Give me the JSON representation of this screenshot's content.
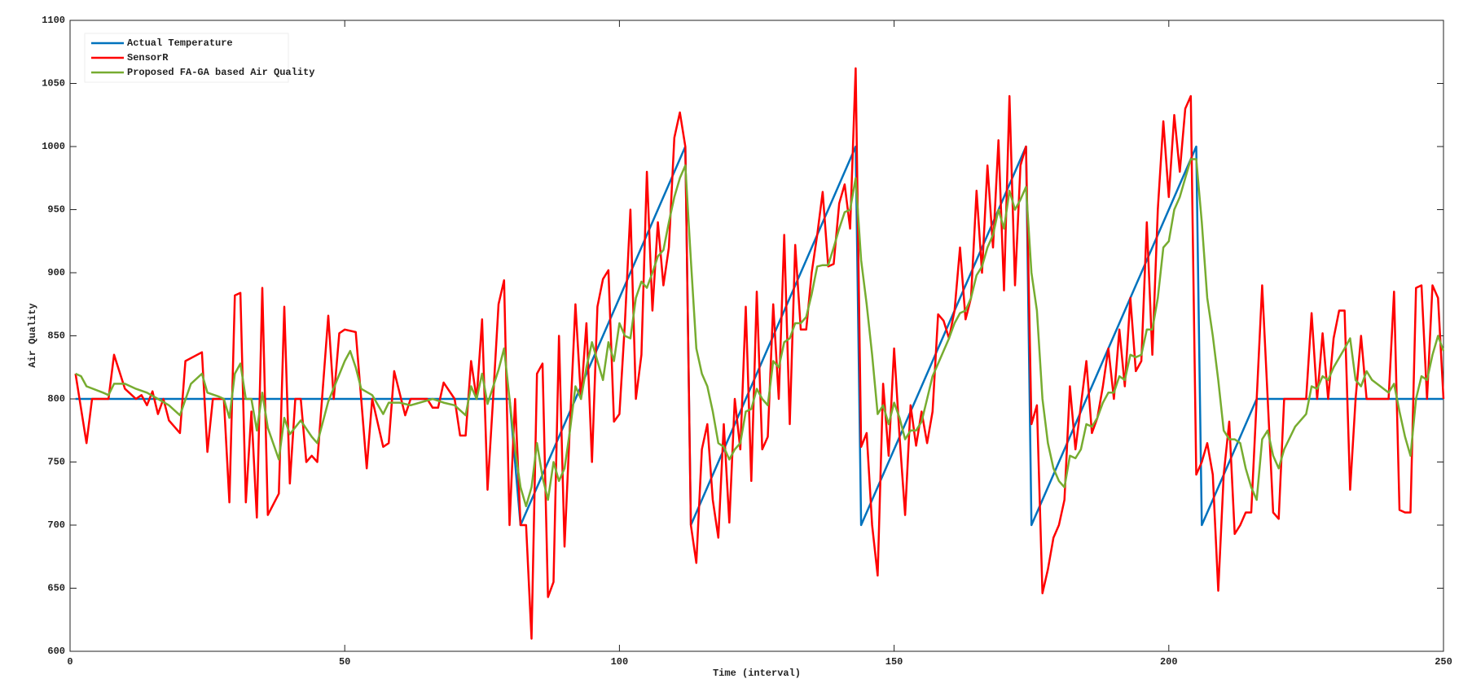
{
  "chart_data": {
    "type": "line",
    "xlabel": "Time (interval)",
    "ylabel": "Air Quality",
    "xlim": [
      0,
      250
    ],
    "xticks": [
      0,
      50,
      100,
      150,
      200,
      250
    ],
    "ylim": [
      600,
      1100
    ],
    "yticks": [
      600,
      650,
      700,
      750,
      800,
      850,
      900,
      950,
      1000,
      1050,
      1100
    ],
    "legend": "upper left",
    "grid": false,
    "series": [
      {
        "name": "Actual Temperature",
        "color": "#0072bd",
        "x": [
          1,
          80,
          82,
          112,
          113,
          143,
          144,
          174,
          175,
          205,
          206,
          216,
          250
        ],
        "values": [
          800,
          800,
          700,
          1000,
          700,
          1000,
          700,
          1000,
          700,
          1000,
          700,
          800,
          800
        ]
      },
      {
        "name": "SensorR",
        "color": "#ff0000",
        "x": [
          1,
          3,
          4,
          7,
          8,
          10,
          12,
          13,
          14,
          15,
          16,
          17,
          18,
          20,
          21,
          24,
          25,
          26,
          28,
          29,
          30,
          31,
          32,
          33,
          34,
          35,
          36,
          38,
          39,
          40,
          41,
          42,
          43,
          44,
          45,
          47,
          48,
          49,
          50,
          52,
          53,
          54,
          55,
          57,
          58,
          59,
          61,
          62,
          65,
          66,
          67,
          68,
          70,
          71,
          72,
          73,
          74,
          75,
          76,
          77,
          78,
          79,
          80,
          81,
          82,
          83,
          84,
          85,
          86,
          87,
          88,
          89,
          90,
          91,
          92,
          93,
          94,
          95,
          96,
          97,
          98,
          99,
          100,
          101,
          102,
          103,
          104,
          105,
          106,
          107,
          108,
          109,
          110,
          111,
          112,
          113,
          114,
          115,
          116,
          117,
          118,
          119,
          120,
          121,
          122,
          123,
          124,
          125,
          126,
          127,
          128,
          129,
          130,
          131,
          132,
          133,
          134,
          135,
          136,
          137,
          138,
          139,
          140,
          141,
          142,
          143,
          144,
          145,
          146,
          147,
          148,
          149,
          150,
          151,
          152,
          153,
          154,
          155,
          156,
          157,
          158,
          159,
          160,
          161,
          162,
          163,
          164,
          165,
          166,
          167,
          168,
          169,
          170,
          171,
          172,
          173,
          174,
          175,
          176,
          177,
          178,
          179,
          180,
          181,
          182,
          183,
          184,
          185,
          186,
          187,
          188,
          189,
          190,
          191,
          192,
          193,
          194,
          195,
          196,
          197,
          198,
          199,
          200,
          201,
          202,
          203,
          204,
          205,
          206,
          207,
          208,
          209,
          210,
          211,
          212,
          213,
          214,
          215,
          216,
          217,
          218,
          219,
          220,
          221,
          225,
          226,
          227,
          228,
          229,
          230,
          231,
          232,
          233,
          234,
          235,
          236,
          240,
          241,
          242,
          243,
          244,
          245,
          246,
          247,
          248,
          249,
          250
        ],
        "values": [
          820,
          765,
          800,
          800,
          835,
          808,
          800,
          803,
          795,
          806,
          788,
          800,
          783,
          773,
          830,
          837,
          758,
          800,
          800,
          718,
          882,
          884,
          718,
          790,
          706,
          888,
          708,
          725,
          873,
          733,
          800,
          800,
          750,
          755,
          750,
          866,
          800,
          852,
          855,
          853,
          800,
          745,
          800,
          762,
          765,
          822,
          787,
          800,
          800,
          793,
          793,
          813,
          800,
          771,
          771,
          830,
          800,
          863,
          728,
          800,
          875,
          894,
          700,
          800,
          700,
          700,
          610,
          820,
          828,
          643,
          655,
          850,
          683,
          780,
          875,
          800,
          860,
          750,
          873,
          895,
          902,
          782,
          788,
          860,
          950,
          800,
          835,
          980,
          870,
          940,
          890,
          920,
          1007,
          1027,
          1000,
          700,
          670,
          760,
          780,
          720,
          690,
          780,
          702,
          800,
          760,
          873,
          735,
          885,
          760,
          770,
          875,
          800,
          930,
          780,
          922,
          855,
          855,
          900,
          930,
          964,
          905,
          907,
          955,
          970,
          935,
          1062,
          762,
          773,
          700,
          660,
          812,
          755,
          840,
          770,
          708,
          795,
          763,
          790,
          765,
          790,
          867,
          862,
          848,
          870,
          920,
          863,
          880,
          965,
          900,
          985,
          920,
          1005,
          886,
          1040,
          890,
          985,
          1000,
          780,
          795,
          646,
          665,
          690,
          700,
          720,
          810,
          760,
          795,
          830,
          773,
          785,
          810,
          840,
          800,
          855,
          810,
          880,
          822,
          830,
          940,
          835,
          950,
          1020,
          960,
          1025,
          980,
          1030,
          1040,
          740,
          750,
          765,
          740,
          648,
          740,
          782,
          693,
          700,
          710,
          710,
          800,
          890,
          800,
          710,
          705,
          800,
          800,
          868,
          800,
          852,
          800,
          848,
          870,
          870,
          728,
          800,
          850,
          800,
          800,
          885,
          712,
          710,
          710,
          888,
          890,
          800,
          890,
          880,
          800
        ]
      },
      {
        "name": "Proposed FA-GA based Air Quality",
        "color": "#77ac30",
        "x": [
          1,
          2,
          3,
          6,
          7,
          8,
          10,
          12,
          14,
          16,
          18,
          20,
          22,
          24,
          25,
          27,
          28,
          29,
          30,
          31,
          32,
          33,
          34,
          35,
          36,
          38,
          39,
          40,
          42,
          44,
          45,
          47,
          50,
          51,
          52,
          53,
          55,
          57,
          58,
          60,
          62,
          66,
          68,
          70,
          72,
          73,
          74,
          75,
          76,
          78,
          79,
          80,
          81,
          82,
          83,
          84,
          85,
          86,
          87,
          88,
          89,
          90,
          91,
          92,
          93,
          94,
          95,
          96,
          97,
          98,
          99,
          100,
          101,
          102,
          103,
          104,
          105,
          106,
          107,
          108,
          109,
          110,
          111,
          112,
          113,
          114,
          115,
          116,
          117,
          118,
          119,
          120,
          121,
          122,
          123,
          124,
          125,
          126,
          127,
          128,
          129,
          130,
          131,
          132,
          133,
          134,
          135,
          136,
          137,
          138,
          139,
          140,
          141,
          142,
          143,
          144,
          145,
          146,
          147,
          148,
          149,
          150,
          151,
          152,
          153,
          154,
          155,
          156,
          157,
          158,
          159,
          160,
          161,
          162,
          163,
          164,
          165,
          166,
          167,
          168,
          169,
          170,
          171,
          172,
          173,
          174,
          175,
          176,
          177,
          178,
          179,
          180,
          181,
          182,
          183,
          184,
          185,
          186,
          187,
          188,
          189,
          190,
          191,
          192,
          193,
          194,
          195,
          196,
          197,
          198,
          199,
          200,
          201,
          202,
          203,
          204,
          205,
          206,
          207,
          208,
          209,
          210,
          211,
          212,
          213,
          214,
          215,
          216,
          217,
          218,
          219,
          220,
          221,
          223,
          225,
          226,
          227,
          228,
          229,
          230,
          232,
          233,
          234,
          235,
          236,
          237,
          240,
          241,
          242,
          243,
          244,
          245,
          246,
          247,
          248,
          249,
          250
        ],
        "values": [
          820,
          818,
          810,
          805,
          803,
          812,
          812,
          808,
          805,
          800,
          795,
          787,
          812,
          820,
          805,
          802,
          800,
          785,
          820,
          828,
          800,
          800,
          775,
          805,
          777,
          752,
          785,
          772,
          783,
          770,
          765,
          798,
          830,
          838,
          825,
          808,
          803,
          788,
          797,
          797,
          795,
          800,
          797,
          795,
          787,
          810,
          800,
          820,
          796,
          823,
          840,
          800,
          760,
          730,
          715,
          730,
          765,
          738,
          720,
          750,
          735,
          745,
          775,
          810,
          800,
          825,
          845,
          830,
          815,
          845,
          830,
          860,
          850,
          848,
          880,
          893,
          888,
          900,
          913,
          918,
          940,
          960,
          975,
          985,
          910,
          840,
          820,
          810,
          790,
          765,
          762,
          752,
          760,
          765,
          790,
          792,
          808,
          800,
          795,
          830,
          825,
          845,
          848,
          860,
          860,
          865,
          883,
          905,
          906,
          906,
          920,
          935,
          948,
          950,
          975,
          910,
          875,
          835,
          788,
          795,
          780,
          797,
          785,
          768,
          775,
          775,
          782,
          800,
          818,
          828,
          838,
          848,
          860,
          868,
          870,
          880,
          898,
          905,
          920,
          930,
          950,
          935,
          965,
          950,
          958,
          968,
          900,
          870,
          800,
          765,
          745,
          735,
          730,
          755,
          753,
          760,
          780,
          778,
          785,
          797,
          805,
          805,
          818,
          815,
          835,
          833,
          835,
          855,
          855,
          880,
          920,
          925,
          950,
          960,
          975,
          990,
          990,
          940,
          880,
          850,
          815,
          775,
          768,
          768,
          765,
          745,
          730,
          720,
          768,
          775,
          755,
          745,
          760,
          778,
          788,
          810,
          808,
          818,
          815,
          825,
          840,
          848,
          815,
          810,
          822,
          815,
          805,
          812,
          790,
          770,
          755,
          800,
          818,
          815,
          835,
          850,
          838
        ]
      }
    ]
  }
}
